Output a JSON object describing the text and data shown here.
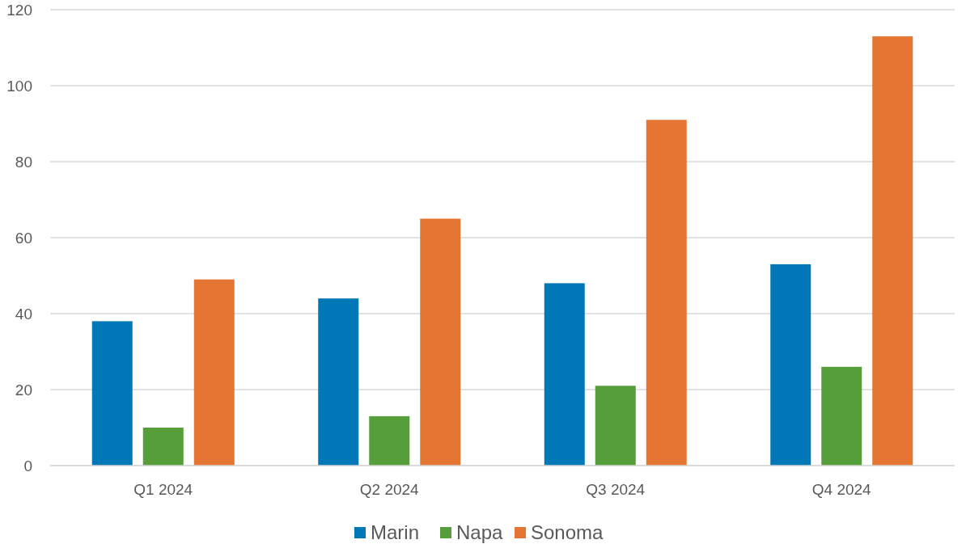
{
  "chart_data": {
    "type": "bar",
    "categories": [
      "Q1 2024",
      "Q2 2024",
      "Q3 2024",
      "Q4 2024"
    ],
    "series": [
      {
        "name": "Marin",
        "color": "#0077b6",
        "values": [
          38,
          44,
          48,
          53
        ]
      },
      {
        "name": "Napa",
        "color": "#559e3a",
        "values": [
          10,
          13,
          21,
          26
        ]
      },
      {
        "name": "Sonoma",
        "color": "#e57532",
        "values": [
          49,
          65,
          91,
          113
        ]
      }
    ],
    "ylim": [
      0,
      120
    ],
    "yticks": [
      0,
      20,
      40,
      60,
      80,
      100,
      120
    ],
    "grid": "y",
    "legend": "bottom"
  }
}
